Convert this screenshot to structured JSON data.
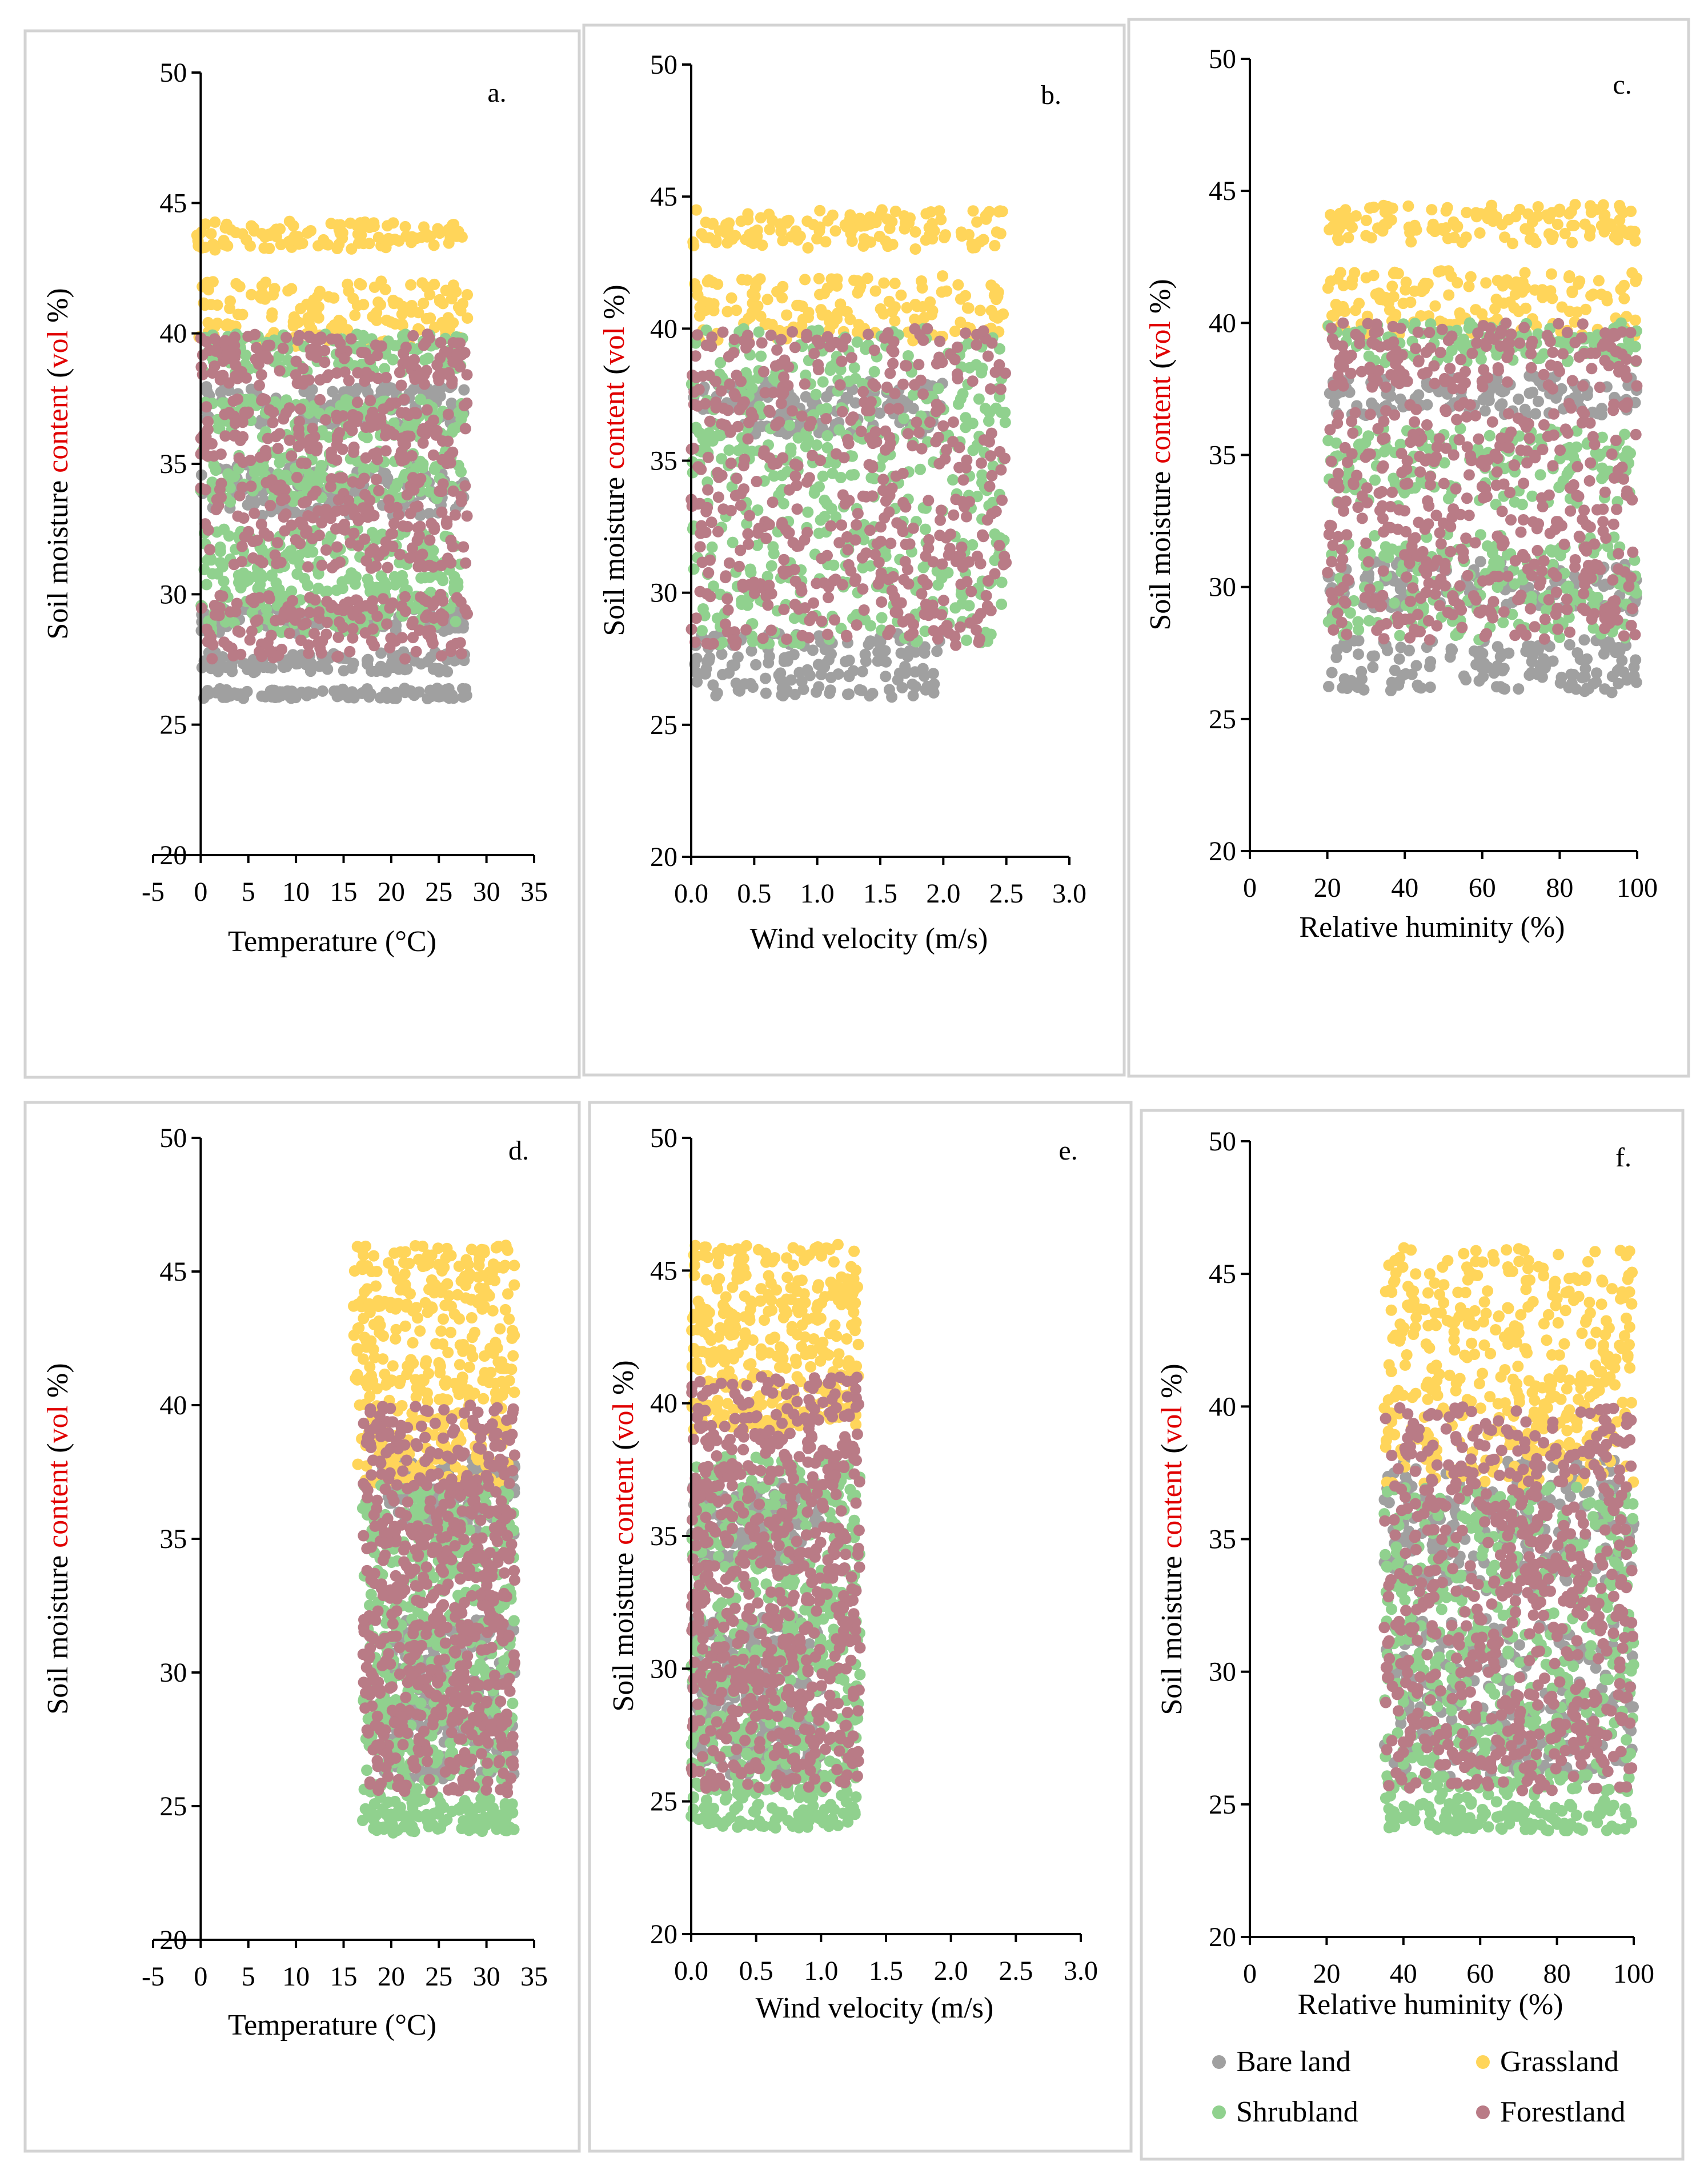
{
  "colors": {
    "bare_land": "#a0a0a0",
    "grassland": "#ffd55a",
    "shrubland": "#90d18e",
    "forestland": "#b97b86",
    "highlight": "#e00000",
    "frame": "#d3d3d3"
  },
  "legend": {
    "items": [
      {
        "key": "bare_land",
        "label": "Bare land"
      },
      {
        "key": "grassland",
        "label": "Grassland"
      },
      {
        "key": "shrubland",
        "label": "Shrubland"
      },
      {
        "key": "forestland",
        "label": "Forestland"
      }
    ]
  },
  "chart_data": [
    {
      "id": "a",
      "type": "scatter",
      "panel_label": "a.",
      "xlabel": "Temperature (°C)",
      "ylabel_parts": [
        "Soil moisture ",
        "content",
        " (",
        "vol",
        " %)"
      ],
      "xlim": [
        -5,
        35
      ],
      "ylim": [
        20,
        50
      ],
      "xticks": [
        -5,
        0,
        5,
        10,
        15,
        20,
        25,
        30,
        35
      ],
      "xtick_labels": [
        "-5",
        "0",
        "5",
        "10",
        "15",
        "20",
        "25",
        "30",
        "35"
      ],
      "yticks": [
        20,
        25,
        30,
        35,
        40,
        45,
        50
      ],
      "ytick_labels": [
        "20",
        "25",
        "30",
        "35",
        "40",
        "45",
        "50"
      ],
      "series": [
        {
          "name": "Bare land",
          "key": "bare_land",
          "x_range": [
            0,
            28
          ],
          "bands": [
            [
              26,
              26.4
            ],
            [
              27,
              27.8
            ],
            [
              28.5,
              29.5
            ],
            [
              33,
              35
            ],
            [
              36.5,
              38
            ]
          ]
        },
        {
          "name": "Grassland",
          "key": "grassland",
          "x_range": [
            -0.5,
            28
          ],
          "bands": [
            [
              39.5,
              42
            ],
            [
              43.2,
              44.3
            ]
          ]
        },
        {
          "name": "Shrubland",
          "key": "shrubland",
          "x_range": [
            0,
            27.5
          ],
          "bands": [
            [
              28.5,
              30.5
            ],
            [
              30.5,
              32.5
            ],
            [
              33.5,
              35.5
            ],
            [
              36,
              37.5
            ],
            [
              38.5,
              40
            ]
          ]
        },
        {
          "name": "Forestland",
          "key": "forestland",
          "x_range": [
            0,
            28
          ],
          "bands": [
            [
              27.5,
              30
            ],
            [
              31,
              34.5
            ],
            [
              35,
              37.5
            ],
            [
              38,
              40
            ]
          ]
        }
      ]
    },
    {
      "id": "b",
      "type": "scatter",
      "panel_label": "b.",
      "xlabel": "Wind velocity (m/s)",
      "ylabel_parts": [
        "Soil moisture ",
        "content",
        " (",
        "vol",
        " %)"
      ],
      "xlim": [
        0,
        3
      ],
      "ylim": [
        20,
        50
      ],
      "xticks": [
        0,
        0.5,
        1,
        1.5,
        2,
        2.5,
        3
      ],
      "xtick_labels": [
        "0.0",
        "0.5",
        "1.0",
        "1.5",
        "2.0",
        "2.5",
        "3.0"
      ],
      "yticks": [
        20,
        25,
        30,
        35,
        40,
        45,
        50
      ],
      "ytick_labels": [
        "20",
        "25",
        "30",
        "35",
        "40",
        "45",
        "50"
      ],
      "series": [
        {
          "name": "Bare land",
          "key": "bare_land",
          "x_range": [
            0,
            2
          ],
          "bands": [
            [
              26,
              28.5
            ],
            [
              36,
              38
            ]
          ]
        },
        {
          "name": "Grassland",
          "key": "grassland",
          "x_range": [
            0,
            2.5
          ],
          "bands": [
            [
              39.5,
              42
            ],
            [
              43,
              44.5
            ]
          ]
        },
        {
          "name": "Shrubland",
          "key": "shrubland",
          "x_range": [
            0,
            2.5
          ],
          "bands": [
            [
              28,
              35
            ],
            [
              35,
              40
            ]
          ]
        },
        {
          "name": "Forestland",
          "key": "forestland",
          "x_range": [
            0,
            2.5
          ],
          "bands": [
            [
              28,
              33
            ],
            [
              33,
              40
            ]
          ]
        }
      ]
    },
    {
      "id": "c",
      "type": "scatter",
      "panel_label": "c.",
      "xlabel": "Relative huminity (%)",
      "ylabel_parts": [
        "Soil moisture ",
        "content",
        " (",
        "vol",
        " %)"
      ],
      "xlim": [
        0,
        100
      ],
      "ylim": [
        20,
        50
      ],
      "xticks": [
        0,
        20,
        40,
        60,
        80,
        100
      ],
      "xtick_labels": [
        "0",
        "20",
        "40",
        "60",
        "80",
        "100"
      ],
      "yticks": [
        20,
        25,
        30,
        35,
        40,
        45,
        50
      ],
      "ytick_labels": [
        "20",
        "25",
        "30",
        "35",
        "40",
        "45",
        "50"
      ],
      "series": [
        {
          "name": "Bare land",
          "key": "bare_land",
          "x_range": [
            20,
            100
          ],
          "bands": [
            [
              26,
              28
            ],
            [
              29,
              31
            ],
            [
              36.5,
              38
            ]
          ]
        },
        {
          "name": "Grassland",
          "key": "grassland",
          "x_range": [
            20,
            100
          ],
          "bands": [
            [
              39.5,
              42
            ],
            [
              43,
              44.5
            ]
          ]
        },
        {
          "name": "Shrubland",
          "key": "shrubland",
          "x_range": [
            20,
            100
          ],
          "bands": [
            [
              28,
              32
            ],
            [
              33,
              36
            ],
            [
              38.5,
              40
            ]
          ]
        },
        {
          "name": "Forestland",
          "key": "forestland",
          "x_range": [
            20,
            100
          ],
          "bands": [
            [
              28,
              32
            ],
            [
              32,
              37
            ],
            [
              37.5,
              40
            ]
          ]
        }
      ]
    },
    {
      "id": "d",
      "type": "scatter",
      "panel_label": "d.",
      "xlabel": "Temperature (°C)",
      "ylabel_parts": [
        "Soil moisture ",
        "content",
        " (",
        "vol",
        " %)"
      ],
      "xlim": [
        -5,
        35
      ],
      "ylim": [
        20,
        50
      ],
      "xticks": [
        -5,
        0,
        5,
        10,
        15,
        20,
        25,
        30,
        35
      ],
      "xtick_labels": [
        "-5",
        "0",
        "5",
        "10",
        "15",
        "20",
        "25",
        "30",
        "35"
      ],
      "yticks": [
        20,
        25,
        30,
        35,
        40,
        45,
        50
      ],
      "ytick_labels": [
        "20",
        "25",
        "30",
        "35",
        "40",
        "45",
        "50"
      ],
      "series": [
        {
          "name": "Bare land",
          "key": "bare_land",
          "x_range": [
            19,
            33
          ],
          "bands": [
            [
              26,
              32
            ],
            [
              35,
              38
            ]
          ]
        },
        {
          "name": "Grassland",
          "key": "grassland",
          "x_range": [
            16,
            33
          ],
          "bands": [
            [
              37,
              41
            ],
            [
              41,
              46
            ]
          ]
        },
        {
          "name": "Shrubland",
          "key": "shrubland",
          "x_range": [
            17,
            33
          ],
          "bands": [
            [
              24,
              25
            ],
            [
              25,
              30
            ],
            [
              30,
              37
            ]
          ]
        },
        {
          "name": "Forestland",
          "key": "forestland",
          "x_range": [
            17,
            33
          ],
          "bands": [
            [
              25.5,
              30
            ],
            [
              30,
              35
            ],
            [
              35,
              40
            ]
          ]
        }
      ]
    },
    {
      "id": "e",
      "type": "scatter",
      "panel_label": "e.",
      "xlabel": "Wind velocity (m/s)",
      "ylabel_parts": [
        "Soil moisture ",
        "content",
        " (",
        "vol",
        " %)"
      ],
      "xlim": [
        0,
        3
      ],
      "ylim": [
        20,
        50
      ],
      "xticks": [
        0,
        0.5,
        1,
        1.5,
        2,
        2.5,
        3
      ],
      "xtick_labels": [
        "0.0",
        "0.5",
        "1.0",
        "1.5",
        "2.0",
        "2.5",
        "3.0"
      ],
      "yticks": [
        20,
        25,
        30,
        35,
        40,
        45,
        50
      ],
      "ytick_labels": [
        "20",
        "25",
        "30",
        "35",
        "40",
        "45",
        "50"
      ],
      "series": [
        {
          "name": "Bare land",
          "key": "bare_land",
          "x_range": [
            0,
            1
          ],
          "bands": [
            [
              26,
              32
            ],
            [
              34,
              37
            ]
          ]
        },
        {
          "name": "Grassland",
          "key": "grassland",
          "x_range": [
            0,
            1.3
          ],
          "bands": [
            [
              39,
              42
            ],
            [
              42,
              46
            ]
          ]
        },
        {
          "name": "Shrubland",
          "key": "shrubland",
          "x_range": [
            0,
            1.3
          ],
          "bands": [
            [
              24,
              26
            ],
            [
              26,
              31
            ],
            [
              31,
              38
            ]
          ]
        },
        {
          "name": "Forestland",
          "key": "forestland",
          "x_range": [
            0,
            1.3
          ],
          "bands": [
            [
              25.5,
              31
            ],
            [
              31,
              36
            ],
            [
              36,
              41
            ]
          ]
        }
      ]
    },
    {
      "id": "f",
      "type": "scatter",
      "panel_label": "f.",
      "xlabel": "Relative huminity (%)",
      "ylabel_parts": [
        "Soil moisture ",
        "content",
        " (",
        "vol",
        " %)"
      ],
      "xlim": [
        0,
        100
      ],
      "ylim": [
        20,
        50
      ],
      "xticks": [
        0,
        20,
        40,
        60,
        80,
        100
      ],
      "xtick_labels": [
        "0",
        "20",
        "40",
        "60",
        "80",
        "100"
      ],
      "yticks": [
        20,
        25,
        30,
        35,
        40,
        45,
        50
      ],
      "ytick_labels": [
        "20",
        "25",
        "30",
        "35",
        "40",
        "45",
        "50"
      ],
      "series": [
        {
          "name": "Bare land",
          "key": "bare_land",
          "x_range": [
            35,
            100
          ],
          "bands": [
            [
              26,
              32
            ],
            [
              33,
              38
            ]
          ]
        },
        {
          "name": "Grassland",
          "key": "grassland",
          "x_range": [
            35,
            100
          ],
          "bands": [
            [
              37,
              41
            ],
            [
              41,
              46
            ]
          ]
        },
        {
          "name": "Shrubland",
          "key": "shrubland",
          "x_range": [
            35,
            100
          ],
          "bands": [
            [
              24,
              25
            ],
            [
              25,
              30
            ],
            [
              30,
              37
            ]
          ]
        },
        {
          "name": "Forestland",
          "key": "forestland",
          "x_range": [
            35,
            100
          ],
          "bands": [
            [
              25.5,
              30
            ],
            [
              30,
              35
            ],
            [
              35,
              40
            ]
          ]
        }
      ]
    }
  ]
}
